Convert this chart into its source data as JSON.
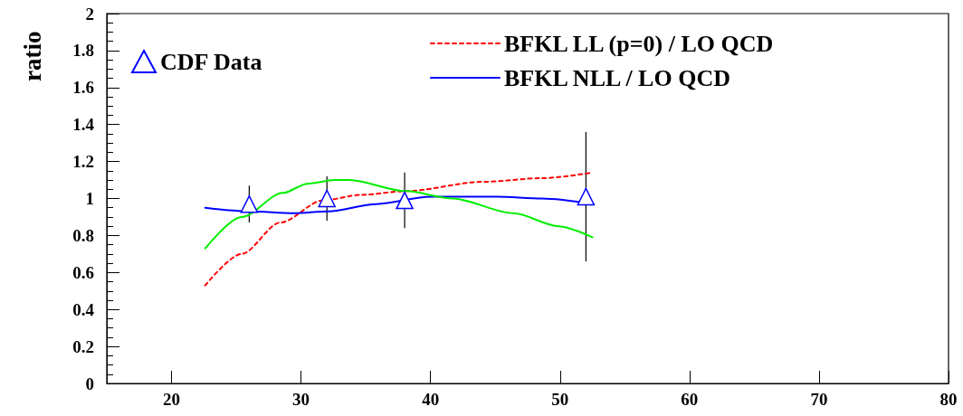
{
  "chart_data": {
    "type": "line",
    "ylabel": "ratio",
    "xlim": [
      15,
      80
    ],
    "xticks": [
      20,
      30,
      40,
      50,
      60,
      70,
      80
    ],
    "ylim": [
      0,
      2
    ],
    "yticks": [
      0,
      0.2,
      0.4,
      0.6,
      0.8,
      1,
      1.2,
      1.4,
      1.6,
      1.8,
      2
    ],
    "grid": false,
    "legend": "top",
    "series": [
      {
        "name": "CDF Data",
        "type": "scatter",
        "marker": "triangle",
        "color": "#0000ff",
        "x": [
          26,
          32,
          38,
          52
        ],
        "values": [
          0.97,
          1.0,
          0.99,
          1.01
        ],
        "errors": [
          0.1,
          0.12,
          0.15,
          0.35
        ]
      },
      {
        "name": "BFKL LL (p=0) / LO QCD",
        "line_style": "dashed",
        "color": "#ff0000",
        "x": [
          22.6,
          25.4,
          28.4,
          31.7,
          34.7,
          38.1,
          44.0,
          48.6,
          52.5
        ],
        "values": [
          0.53,
          0.7,
          0.87,
          0.99,
          1.02,
          1.04,
          1.09,
          1.11,
          1.14
        ]
      },
      {
        "name": "BFKL NLL / LO QCD",
        "line_style": "solid",
        "color": "#0000ff",
        "x": [
          22.6,
          26.1,
          29.4,
          32.1,
          35.8,
          40.0,
          45.1,
          48.6,
          52.6
        ],
        "values": [
          0.95,
          0.93,
          0.92,
          0.93,
          0.97,
          1.01,
          1.01,
          1.0,
          0.97
        ]
      },
      {
        "line_style": "solid",
        "color": "#00ee00",
        "x": [
          22.6,
          25.4,
          28.6,
          30.5,
          32.6,
          33.7,
          38.1,
          41.7,
          46.4,
          49.9,
          52.5
        ],
        "values": [
          0.73,
          0.9,
          1.03,
          1.08,
          1.1,
          1.1,
          1.04,
          1.0,
          0.92,
          0.85,
          0.79
        ]
      }
    ]
  }
}
